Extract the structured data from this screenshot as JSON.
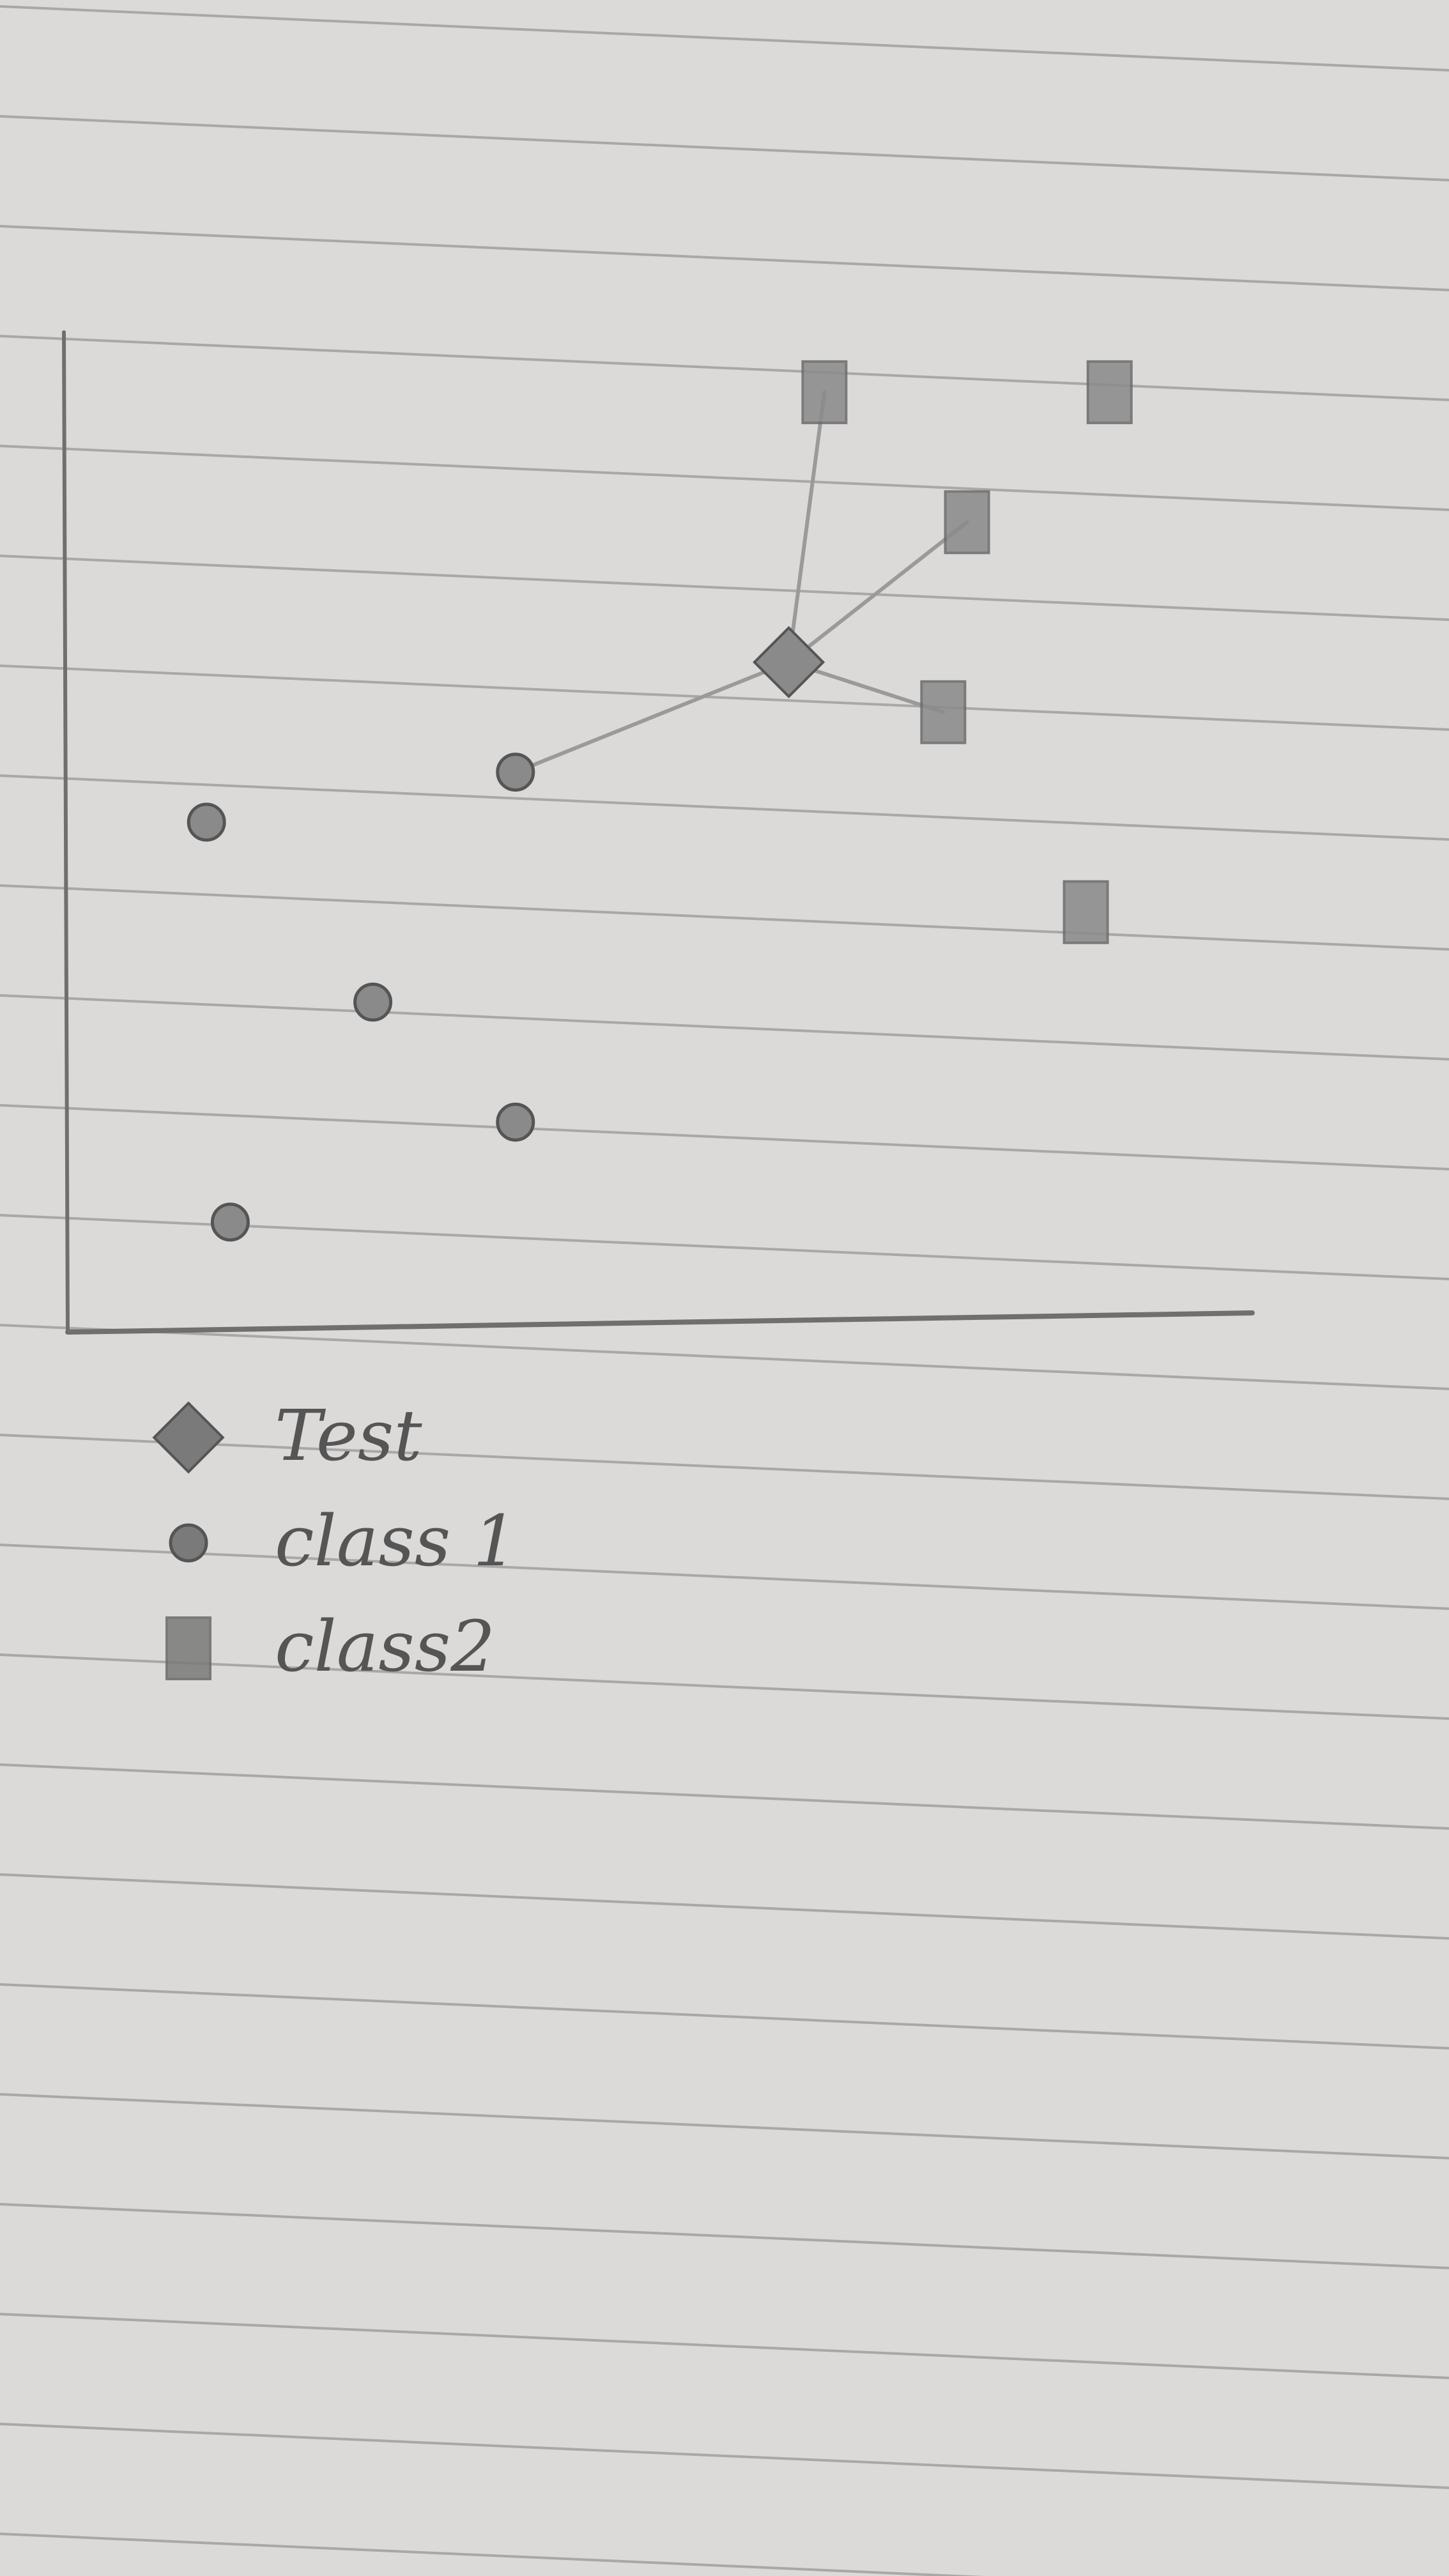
{
  "chart_data": {
    "type": "scatter",
    "title": "",
    "xlabel": "",
    "ylabel": "",
    "xlim": [
      0,
      10
    ],
    "ylim": [
      0,
      10
    ],
    "grid": false,
    "legend_position": "bottom-left",
    "series": [
      {
        "name": "Test",
        "marker": "diamond",
        "color": "#8a8a8a",
        "points": [
          [
            6.1,
            6.7
          ]
        ]
      },
      {
        "name": "class 1",
        "marker": "circle",
        "color": "#8a8a8a",
        "points": [
          [
            1.2,
            5.1
          ],
          [
            2.6,
            3.3
          ],
          [
            3.8,
            5.6
          ],
          [
            3.8,
            2.1
          ],
          [
            1.4,
            1.1
          ]
        ]
      },
      {
        "name": "class 2",
        "marker": "square",
        "color": "#8a8a8a",
        "points": [
          [
            6.4,
            9.4
          ],
          [
            8.8,
            9.4
          ],
          [
            7.6,
            8.1
          ],
          [
            7.4,
            6.2
          ],
          [
            8.6,
            4.2
          ]
        ]
      }
    ],
    "neighbor_links": [
      {
        "from": [
          6.1,
          6.7
        ],
        "to": [
          3.8,
          5.6
        ]
      },
      {
        "from": [
          6.1,
          6.7
        ],
        "to": [
          6.4,
          9.4
        ]
      },
      {
        "from": [
          6.1,
          6.7
        ],
        "to": [
          7.6,
          8.1
        ]
      },
      {
        "from": [
          6.1,
          6.7
        ],
        "to": [
          7.4,
          6.2
        ]
      }
    ],
    "legend": [
      {
        "label": "Test",
        "marker": "diamond"
      },
      {
        "label": "class 1",
        "marker": "circle"
      },
      {
        "label": "class2",
        "marker": "square"
      }
    ]
  },
  "paper": {
    "background": "#dcdad8",
    "rule_color": "#8f8e8d",
    "pencil_color": "#6f6f6f"
  }
}
